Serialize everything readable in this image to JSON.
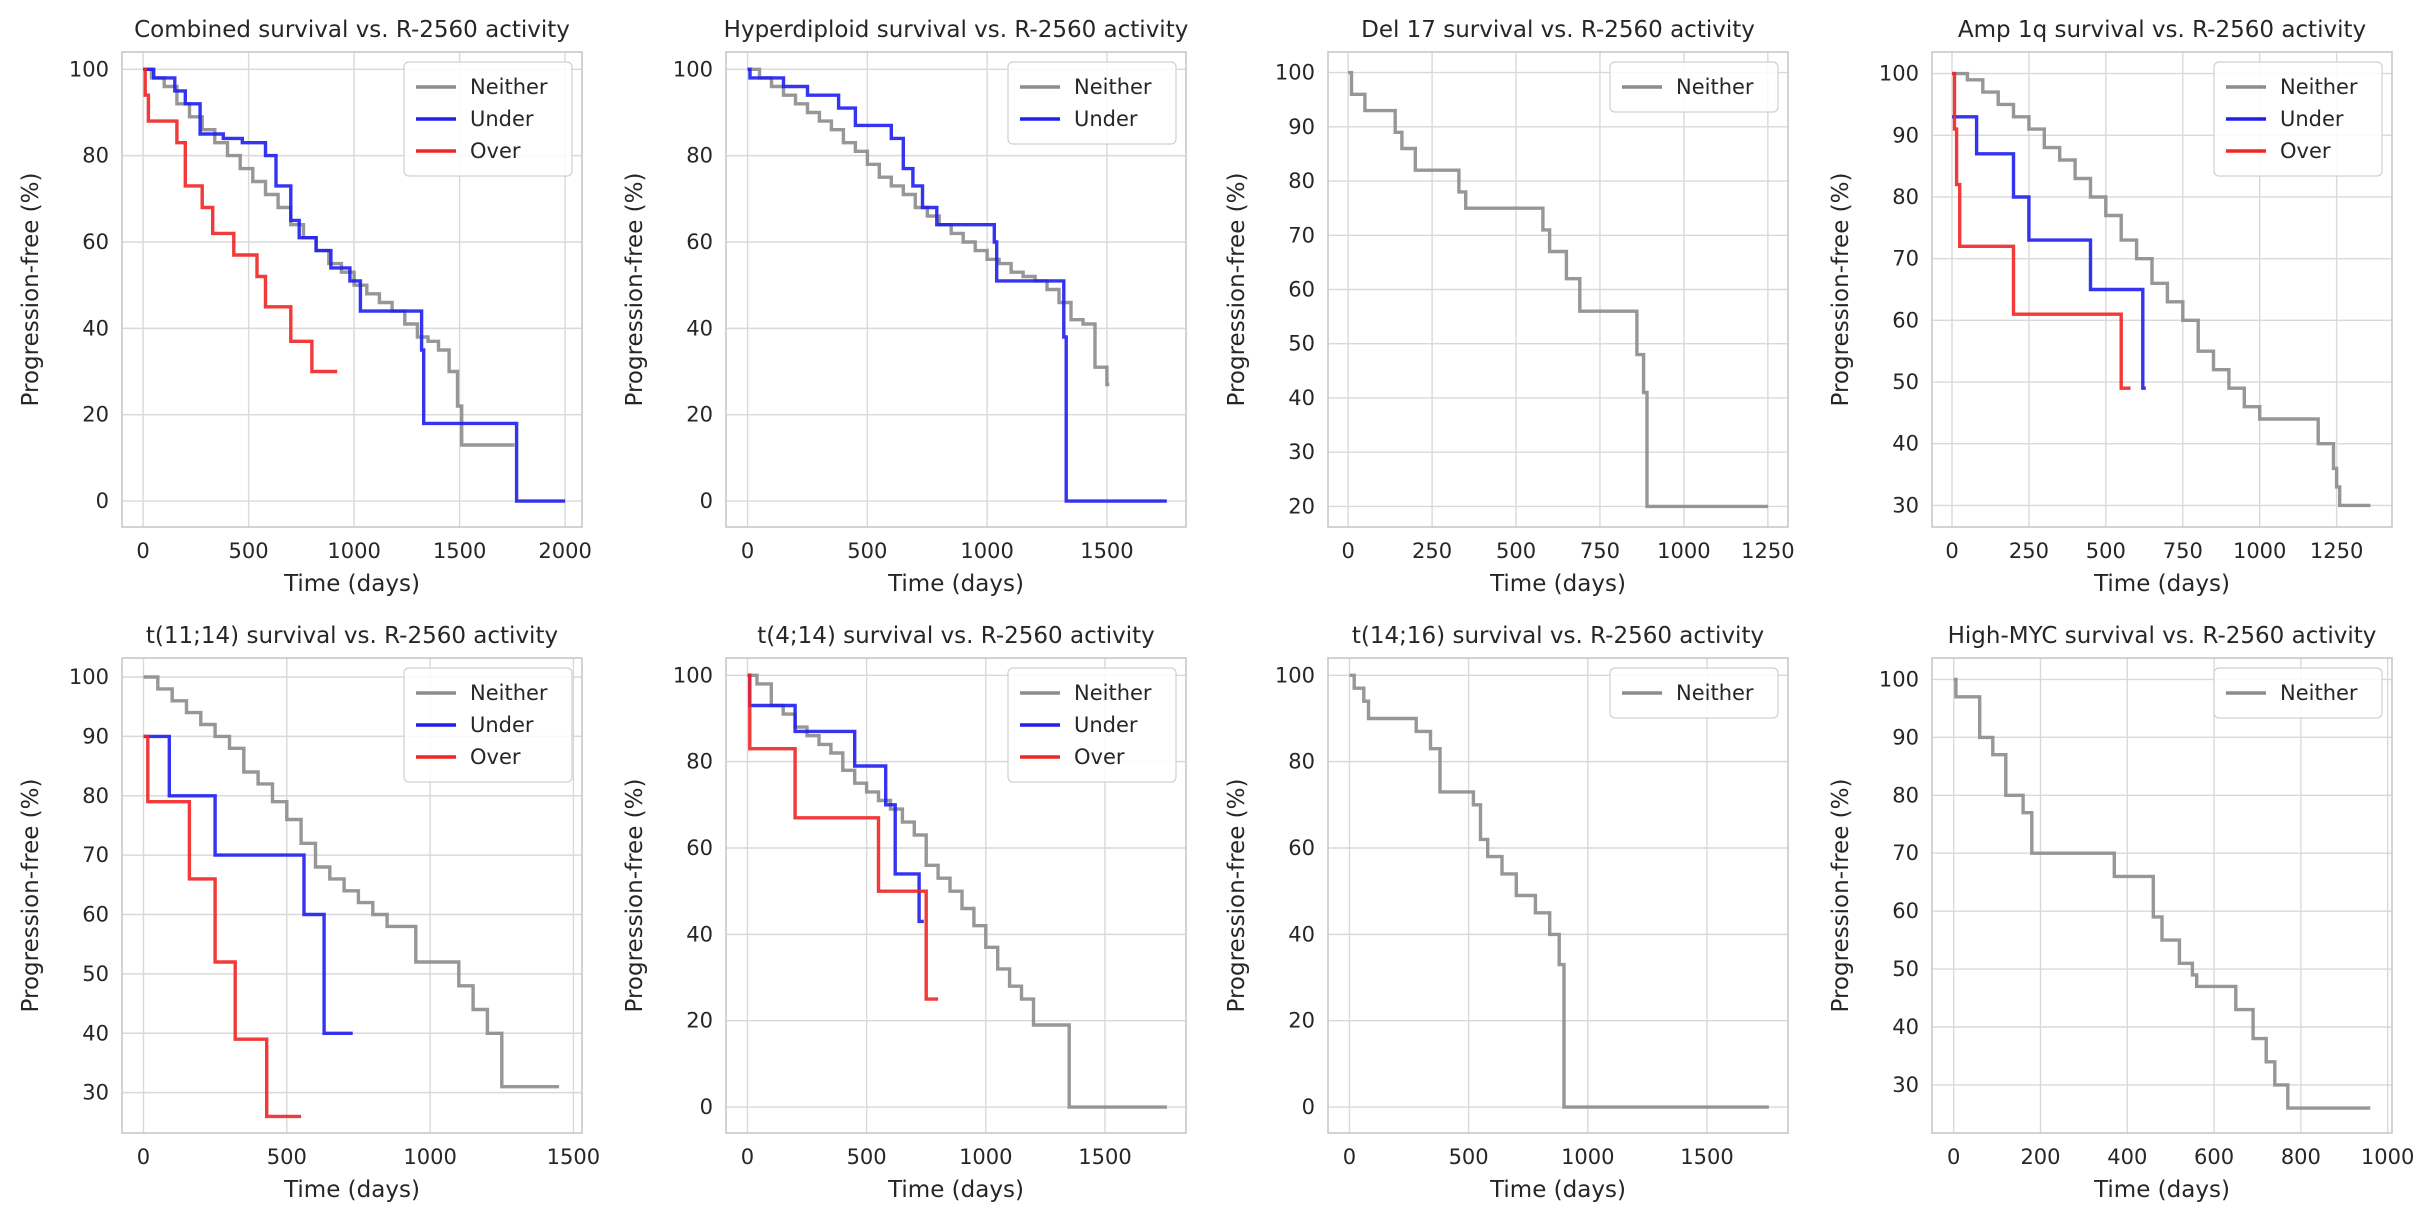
{
  "figure": {
    "colors": {
      "Neither": "#8c8c8c",
      "Under": "#1f1ff0",
      "Over": "#f02525",
      "grid": "#d9d9d9",
      "frame": "#c8c8c8"
    }
  },
  "chart_data": [
    {
      "type": "line",
      "title": "Combined survival vs. R-2560 activity",
      "xlabel": "Time (days)",
      "ylabel": "Progression-free (%)",
      "xlim": [
        -100,
        2080
      ],
      "ylim": [
        -6,
        104
      ],
      "xticks": [
        0,
        500,
        1000,
        1500,
        2000
      ],
      "yticks": [
        0,
        20,
        40,
        60,
        80,
        100
      ],
      "legend": "top-right",
      "series": [
        {
          "name": "Neither",
          "x": [
            0,
            40,
            100,
            160,
            220,
            280,
            340,
            400,
            460,
            520,
            580,
            640,
            700,
            760,
            820,
            880,
            940,
            1000,
            1060,
            1120,
            1180,
            1240,
            1300,
            1350,
            1400,
            1450,
            1490,
            1510,
            1760
          ],
          "y": [
            100,
            98,
            96,
            92,
            89,
            86,
            83,
            80,
            77,
            74,
            71,
            68,
            64,
            61,
            58,
            55,
            53,
            50,
            48,
            46,
            44,
            41,
            38,
            37,
            35,
            30,
            22,
            13,
            13
          ]
        },
        {
          "name": "Under",
          "x": [
            0,
            50,
            150,
            200,
            270,
            380,
            470,
            580,
            630,
            700,
            740,
            820,
            890,
            980,
            1030,
            1290,
            1320,
            1330,
            1760,
            1770,
            2000
          ],
          "y": [
            100,
            98,
            95,
            92,
            85,
            84,
            83,
            80,
            73,
            65,
            61,
            58,
            54,
            51,
            44,
            44,
            35,
            18,
            18,
            0,
            0
          ]
        },
        {
          "name": "Over",
          "x": [
            0,
            10,
            25,
            160,
            200,
            280,
            330,
            430,
            540,
            580,
            700,
            800,
            920
          ],
          "y": [
            100,
            94,
            88,
            83,
            73,
            68,
            62,
            57,
            52,
            45,
            37,
            30,
            30
          ]
        }
      ]
    },
    {
      "type": "line",
      "title": "Hyperdiploid survival vs. R-2560 activity",
      "xlabel": "Time (days)",
      "ylabel": "Progression-free (%)",
      "xlim": [
        -90,
        1830
      ],
      "ylim": [
        -6,
        104
      ],
      "xticks": [
        0,
        500,
        1000,
        1500
      ],
      "yticks": [
        0,
        20,
        40,
        60,
        80,
        100
      ],
      "legend": "top-right",
      "series": [
        {
          "name": "Neither",
          "x": [
            0,
            50,
            100,
            150,
            200,
            250,
            300,
            350,
            400,
            450,
            500,
            550,
            600,
            650,
            700,
            750,
            800,
            850,
            900,
            950,
            1000,
            1050,
            1100,
            1150,
            1200,
            1250,
            1300,
            1350,
            1400,
            1450,
            1500,
            1510
          ],
          "y": [
            100,
            98,
            96,
            94,
            92,
            90,
            88,
            86,
            83,
            81,
            78,
            75,
            73,
            71,
            68,
            66,
            64,
            62,
            60,
            58,
            56,
            55,
            53,
            52,
            51,
            49,
            46,
            42,
            41,
            31,
            27,
            27
          ]
        },
        {
          "name": "Under",
          "x": [
            0,
            10,
            150,
            250,
            380,
            450,
            600,
            650,
            690,
            730,
            790,
            890,
            1030,
            1040,
            1290,
            1320,
            1330,
            1750
          ],
          "y": [
            100,
            98,
            96,
            94,
            91,
            87,
            84,
            77,
            73,
            68,
            64,
            64,
            60,
            51,
            51,
            38,
            0,
            0
          ]
        }
      ]
    },
    {
      "type": "line",
      "title": "Del 17 survival vs. R-2560 activity",
      "xlabel": "Time (days)",
      "ylabel": "Progression-free (%)",
      "xlim": [
        -60,
        1310
      ],
      "ylim": [
        16.2,
        103.8
      ],
      "xticks": [
        0,
        250,
        500,
        750,
        1000,
        1250
      ],
      "yticks": [
        20,
        30,
        40,
        50,
        60,
        70,
        80,
        90,
        100
      ],
      "legend": "top-right",
      "series": [
        {
          "name": "Neither",
          "x": [
            0,
            10,
            50,
            140,
            160,
            200,
            330,
            350,
            580,
            600,
            650,
            690,
            720,
            860,
            880,
            890,
            1250
          ],
          "y": [
            100,
            96,
            93,
            89,
            86,
            82,
            78,
            75,
            71,
            67,
            62,
            56,
            56,
            48,
            41,
            20,
            20
          ]
        }
      ]
    },
    {
      "type": "line",
      "title": "Amp 1q survival vs. R-2560 activity",
      "xlabel": "Time (days)",
      "ylabel": "Progression-free (%)",
      "xlim": [
        -65,
        1430
      ],
      "ylim": [
        26.5,
        103.5
      ],
      "xticks": [
        0,
        250,
        500,
        750,
        1000,
        1250
      ],
      "yticks": [
        30,
        40,
        50,
        60,
        70,
        80,
        90,
        100
      ],
      "legend": "top-right",
      "series": [
        {
          "name": "Neither",
          "x": [
            0,
            50,
            100,
            150,
            200,
            250,
            300,
            350,
            400,
            450,
            500,
            550,
            600,
            650,
            700,
            750,
            800,
            850,
            900,
            950,
            1000,
            1050,
            1100,
            1150,
            1190,
            1220,
            1240,
            1250,
            1260,
            1360
          ],
          "y": [
            100,
            99,
            97,
            95,
            93,
            91,
            88,
            86,
            83,
            80,
            77,
            73,
            70,
            66,
            63,
            60,
            55,
            52,
            49,
            46,
            44,
            44,
            44,
            44,
            40,
            40,
            36,
            33,
            30,
            30
          ]
        },
        {
          "name": "Under",
          "x": [
            0,
            80,
            200,
            250,
            450,
            540,
            620,
            630
          ],
          "y": [
            93,
            87,
            80,
            73,
            65,
            65,
            49,
            49
          ]
        },
        {
          "name": "Over",
          "x": [
            0,
            8,
            15,
            25,
            200,
            400,
            550,
            580
          ],
          "y": [
            100,
            91,
            82,
            72,
            61,
            61,
            49,
            49
          ]
        }
      ]
    },
    {
      "type": "line",
      "title": "t(11;14) survival vs. R-2560 activity",
      "xlabel": "Time (days)",
      "ylabel": "Progression-free (%)",
      "xlim": [
        -75,
        1530
      ],
      "ylim": [
        23.2,
        103.2
      ],
      "xticks": [
        0,
        500,
        1000,
        1500
      ],
      "yticks": [
        30,
        40,
        50,
        60,
        70,
        80,
        90,
        100
      ],
      "legend": "top-right",
      "series": [
        {
          "name": "Neither",
          "x": [
            0,
            50,
            100,
            150,
            200,
            250,
            300,
            350,
            400,
            450,
            500,
            550,
            600,
            650,
            700,
            750,
            800,
            850,
            950,
            1050,
            1100,
            1150,
            1200,
            1250,
            1450
          ],
          "y": [
            100,
            98,
            96,
            94,
            92,
            90,
            88,
            84,
            82,
            79,
            76,
            72,
            68,
            66,
            64,
            62,
            60,
            58,
            52,
            52,
            48,
            44,
            40,
            31,
            31
          ]
        },
        {
          "name": "Under",
          "x": [
            0,
            90,
            150,
            250,
            400,
            520,
            560,
            630,
            730
          ],
          "y": [
            90,
            80,
            80,
            70,
            70,
            70,
            60,
            40,
            40
          ]
        },
        {
          "name": "Over",
          "x": [
            0,
            15,
            160,
            250,
            320,
            430,
            550
          ],
          "y": [
            90,
            79,
            66,
            52,
            39,
            26,
            26
          ]
        }
      ]
    },
    {
      "type": "line",
      "title": "t(4;14) survival vs. R-2560 activity",
      "xlabel": "Time (days)",
      "ylabel": "Progression-free (%)",
      "xlim": [
        -90,
        1840
      ],
      "ylim": [
        -6,
        104
      ],
      "xticks": [
        0,
        500,
        1000,
        1500
      ],
      "yticks": [
        0,
        20,
        40,
        60,
        80,
        100
      ],
      "legend": "top-right",
      "series": [
        {
          "name": "Neither",
          "x": [
            0,
            40,
            100,
            150,
            200,
            250,
            300,
            350,
            400,
            450,
            500,
            550,
            600,
            650,
            700,
            750,
            800,
            850,
            900,
            950,
            1000,
            1050,
            1100,
            1150,
            1200,
            1340,
            1350,
            1760
          ],
          "y": [
            100,
            98,
            93,
            91,
            88,
            86,
            84,
            82,
            78,
            75,
            73,
            71,
            69,
            66,
            63,
            56,
            53,
            50,
            46,
            42,
            37,
            32,
            28,
            25,
            19,
            19,
            0,
            0
          ]
        },
        {
          "name": "Under",
          "x": [
            0,
            10,
            200,
            450,
            580,
            620,
            720,
            740
          ],
          "y": [
            100,
            93,
            87,
            79,
            70,
            54,
            43,
            43
          ]
        },
        {
          "name": "Over",
          "x": [
            0,
            10,
            200,
            550,
            700,
            750,
            800
          ],
          "y": [
            100,
            83,
            67,
            50,
            50,
            25,
            25
          ]
        }
      ]
    },
    {
      "type": "line",
      "title": "t(14;16) survival vs. R-2560 activity",
      "xlabel": "Time (days)",
      "ylabel": "Progression-free (%)",
      "xlim": [
        -90,
        1840
      ],
      "ylim": [
        -6,
        104
      ],
      "xticks": [
        0,
        500,
        1000,
        1500
      ],
      "yticks": [
        0,
        20,
        40,
        60,
        80,
        100
      ],
      "legend": "top-right",
      "series": [
        {
          "name": "Neither",
          "x": [
            0,
            20,
            60,
            80,
            280,
            340,
            380,
            520,
            550,
            580,
            640,
            700,
            780,
            840,
            880,
            900,
            1760
          ],
          "y": [
            100,
            97,
            94,
            90,
            87,
            83,
            73,
            70,
            62,
            58,
            54,
            49,
            45,
            40,
            33,
            0,
            0
          ]
        }
      ]
    },
    {
      "type": "line",
      "title": "High-MYC survival vs. R-2560 activity",
      "xlabel": "Time (days)",
      "ylabel": "Progression-free (%)",
      "xlim": [
        -50,
        1010
      ],
      "ylim": [
        21.7,
        103.7
      ],
      "xticks": [
        0,
        200,
        400,
        600,
        800,
        1000
      ],
      "yticks": [
        30,
        40,
        50,
        60,
        70,
        80,
        90,
        100
      ],
      "legend": "top-right",
      "series": [
        {
          "name": "Neither",
          "x": [
            0,
            5,
            60,
            90,
            120,
            160,
            180,
            370,
            460,
            480,
            520,
            550,
            560,
            650,
            690,
            720,
            740,
            770,
            960
          ],
          "y": [
            100,
            97,
            90,
            87,
            80,
            77,
            70,
            66,
            59,
            55,
            51,
            49,
            47,
            43,
            38,
            34,
            30,
            26,
            26
          ]
        }
      ]
    }
  ]
}
